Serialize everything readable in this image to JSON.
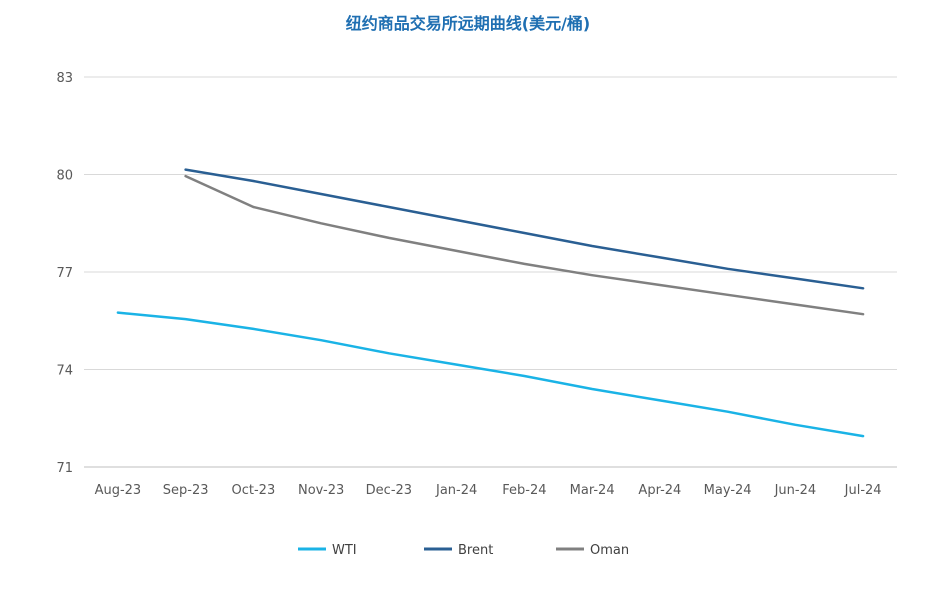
{
  "chart_data": {
    "type": "line",
    "title": "纽约商品交易所远期曲线(美元/桶)",
    "xlabel": "",
    "ylabel": "",
    "categories": [
      "Aug-23",
      "Sep-23",
      "Oct-23",
      "Nov-23",
      "Dec-23",
      "Jan-24",
      "Feb-24",
      "Mar-24",
      "Apr-24",
      "May-24",
      "Jun-24",
      "Jul-24"
    ],
    "ylim": [
      71,
      83
    ],
    "yticks": [
      71,
      74,
      77,
      80,
      83
    ],
    "ytick_labels": [
      "71",
      "74",
      "77",
      "80",
      "83"
    ],
    "grid": true,
    "legend_position": "bottom",
    "series": [
      {
        "name": "WTI",
        "color": "#1ab3e6",
        "values": [
          75.75,
          75.55,
          75.25,
          74.9,
          74.5,
          74.15,
          73.8,
          73.4,
          73.05,
          72.7,
          72.3,
          71.95
        ]
      },
      {
        "name": "Brent",
        "color": "#2a5f93",
        "values": [
          null,
          80.15,
          79.8,
          79.4,
          79.0,
          78.6,
          78.2,
          77.8,
          77.45,
          77.1,
          76.8,
          76.5
        ]
      },
      {
        "name": "Oman",
        "color": "#808080",
        "values": [
          null,
          79.95,
          79.0,
          78.5,
          78.05,
          77.65,
          77.25,
          76.9,
          76.6,
          76.3,
          76.0,
          75.7
        ]
      }
    ]
  }
}
